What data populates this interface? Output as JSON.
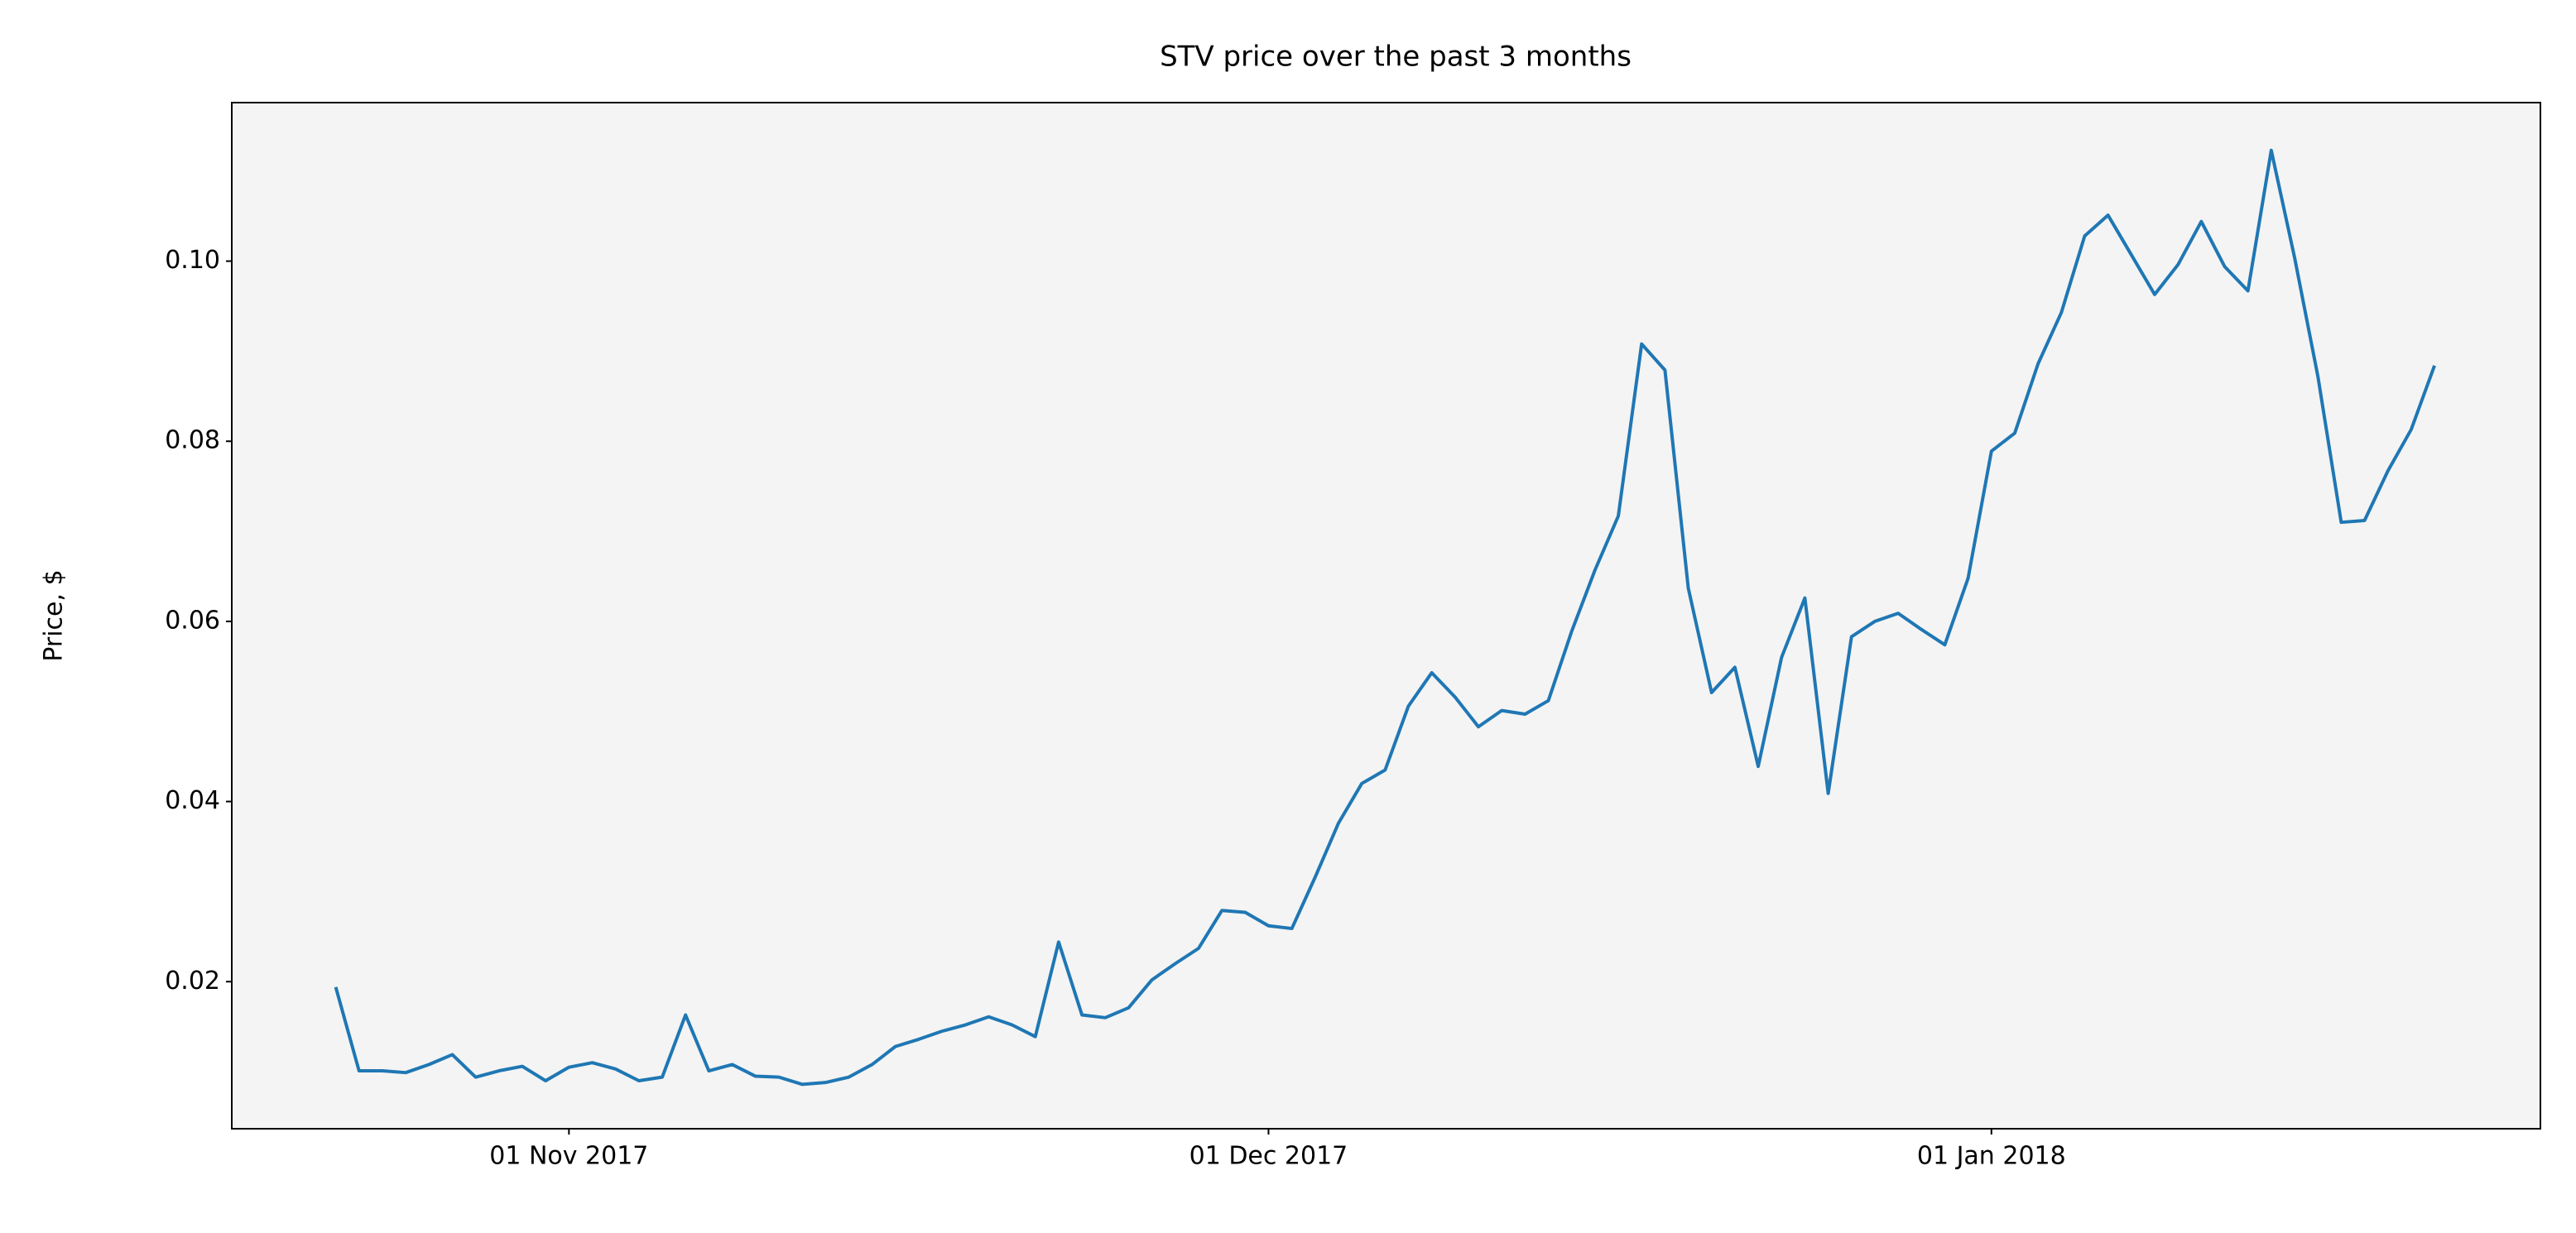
{
  "chart_data": {
    "type": "line",
    "title": "STV price over the past 3 months",
    "ylabel": "Price, $",
    "color": "#1f77b4",
    "background": "#f4f4f4",
    "grid": false,
    "x": [
      "2017-10-22",
      "2017-10-23",
      "2017-10-24",
      "2017-10-25",
      "2017-10-26",
      "2017-10-27",
      "2017-10-28",
      "2017-10-29",
      "2017-10-30",
      "2017-10-31",
      "2017-11-01",
      "2017-11-02",
      "2017-11-03",
      "2017-11-04",
      "2017-11-05",
      "2017-11-06",
      "2017-11-07",
      "2017-11-08",
      "2017-11-09",
      "2017-11-10",
      "2017-11-11",
      "2017-11-12",
      "2017-11-13",
      "2017-11-14",
      "2017-11-15",
      "2017-11-16",
      "2017-11-17",
      "2017-11-18",
      "2017-11-19",
      "2017-11-20",
      "2017-11-21",
      "2017-11-22",
      "2017-11-23",
      "2017-11-24",
      "2017-11-25",
      "2017-11-26",
      "2017-11-27",
      "2017-11-28",
      "2017-11-29",
      "2017-11-30",
      "2017-12-01",
      "2017-12-02",
      "2017-12-03",
      "2017-12-04",
      "2017-12-05",
      "2017-12-06",
      "2017-12-07",
      "2017-12-08",
      "2017-12-09",
      "2017-12-10",
      "2017-12-11",
      "2017-12-12",
      "2017-12-13",
      "2017-12-14",
      "2017-12-15",
      "2017-12-16",
      "2017-12-17",
      "2017-12-18",
      "2017-12-19",
      "2017-12-20",
      "2017-12-21",
      "2017-12-22",
      "2017-12-23",
      "2017-12-24",
      "2017-12-25",
      "2017-12-26",
      "2017-12-27",
      "2017-12-28",
      "2017-12-29",
      "2017-12-30",
      "2017-12-31",
      "2018-01-01",
      "2018-01-02",
      "2018-01-03",
      "2018-01-04",
      "2018-01-05",
      "2018-01-06",
      "2018-01-07",
      "2018-01-08",
      "2018-01-09",
      "2018-01-10",
      "2018-01-11",
      "2018-01-12",
      "2018-01-13",
      "2018-01-14",
      "2018-01-15",
      "2018-01-16",
      "2018-01-17",
      "2018-01-18",
      "2018-01-19",
      "2018-01-20"
    ],
    "values": [
      0.0194,
      0.0101,
      0.0101,
      0.0099,
      0.0108,
      0.0119,
      0.0094,
      0.0101,
      0.0106,
      0.009,
      0.0105,
      0.011,
      0.0103,
      0.009,
      0.0094,
      0.0163,
      0.0101,
      0.0108,
      0.0095,
      0.0094,
      0.0086,
      0.0088,
      0.0094,
      0.0108,
      0.0128,
      0.0136,
      0.0145,
      0.0152,
      0.0161,
      0.0152,
      0.0139,
      0.0244,
      0.0163,
      0.016,
      0.0171,
      0.0202,
      0.022,
      0.0237,
      0.0279,
      0.0277,
      0.0262,
      0.0259,
      0.0316,
      0.0376,
      0.042,
      0.0435,
      0.0506,
      0.0543,
      0.0516,
      0.0483,
      0.0501,
      0.0497,
      0.0512,
      0.0589,
      0.0657,
      0.0717,
      0.0908,
      0.0879,
      0.0637,
      0.0521,
      0.0549,
      0.0439,
      0.056,
      0.0626,
      0.0409,
      0.0583,
      0.06,
      0.0609,
      0.0591,
      0.0574,
      0.0648,
      0.0789,
      0.0809,
      0.0886,
      0.0943,
      0.1028,
      0.1051,
      0.1007,
      0.0963,
      0.0996,
      0.1044,
      0.0994,
      0.0967,
      0.1123,
      0.1004,
      0.0872,
      0.071,
      0.0712,
      0.0767,
      0.0813,
      0.0884
    ],
    "xlim": [
      "2017-10-17T13:00",
      "2018-01-24T13:00"
    ],
    "xticks": [
      {
        "value": "2017-11-01",
        "label": "01 Nov 2017"
      },
      {
        "value": "2017-12-01",
        "label": "01 Dec 2017"
      },
      {
        "value": "2018-01-01",
        "label": "01 Jan 2018"
      }
    ],
    "ylim": [
      0.00367,
      0.1176
    ],
    "yticks": [
      0.02,
      0.04,
      0.06,
      0.08,
      {
        "value": 0.1,
        "label": "0.10"
      }
    ]
  }
}
